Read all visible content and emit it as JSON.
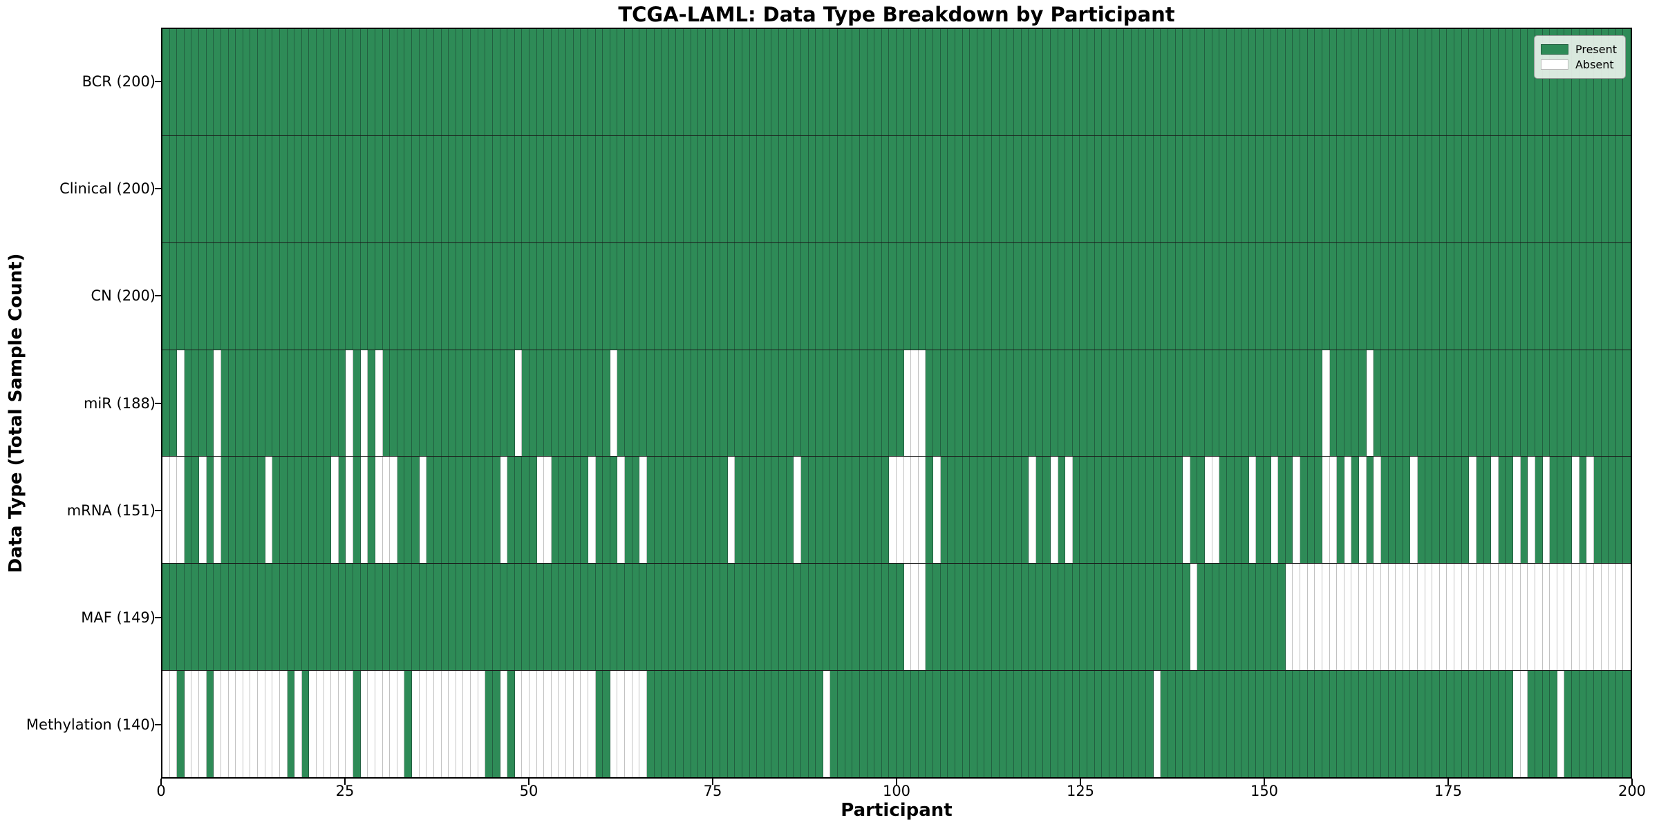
{
  "title": "TCGA-LAML: Data Type Breakdown by Participant",
  "xlabel": "Participant",
  "ylabel": "Data Type (Total Sample Count)",
  "legend": {
    "present_label": "Present",
    "absent_label": "Absent"
  },
  "colors": {
    "present": "#2e8b57",
    "absent": "#ffffff",
    "grid_on_present": "#225f40",
    "grid_on_absent": "#c2c2c2"
  },
  "chart_data": {
    "type": "heatmap",
    "n_participants": 200,
    "x_ticks": [
      0,
      25,
      50,
      75,
      100,
      125,
      150,
      175,
      200
    ],
    "legend_position": "upper right",
    "rows": [
      {
        "label": "BCR (200)",
        "name": "BCR",
        "present_count": 200,
        "absent_participants": []
      },
      {
        "label": "Clinical (200)",
        "name": "Clinical",
        "present_count": 200,
        "absent_participants": []
      },
      {
        "label": "CN (200)",
        "name": "CN",
        "present_count": 200,
        "absent_participants": []
      },
      {
        "label": "miR (188)",
        "name": "miR",
        "present_count": 188,
        "absent_participants": [
          2,
          7,
          25,
          27,
          29,
          48,
          61,
          101,
          102,
          103,
          158,
          164
        ]
      },
      {
        "label": "mRNA (151)",
        "name": "mRNA",
        "present_count": 151,
        "absent_participants": [
          0,
          1,
          2,
          5,
          7,
          14,
          23,
          25,
          27,
          29,
          30,
          31,
          35,
          46,
          51,
          52,
          58,
          62,
          65,
          77,
          86,
          99,
          100,
          101,
          102,
          103,
          105,
          118,
          121,
          123,
          139,
          142,
          143,
          148,
          151,
          154,
          158,
          159,
          161,
          163,
          165,
          170,
          178,
          181,
          184,
          186,
          188,
          192,
          194
        ]
      },
      {
        "label": "MAF (149)",
        "name": "MAF",
        "present_count": 149,
        "absent_participants": [
          101,
          102,
          103,
          140,
          153,
          154,
          155,
          156,
          157,
          158,
          159,
          160,
          161,
          162,
          163,
          164,
          165,
          166,
          167,
          168,
          169,
          170,
          171,
          172,
          173,
          174,
          175,
          176,
          177,
          178,
          179,
          180,
          181,
          182,
          183,
          184,
          185,
          186,
          187,
          188,
          189,
          190,
          191,
          192,
          193,
          194,
          195,
          196,
          197,
          198,
          199
        ]
      },
      {
        "label": "Methylation (140)",
        "name": "Methylation",
        "present_count": 140,
        "absent_participants": [
          0,
          1,
          3,
          4,
          5,
          7,
          8,
          9,
          10,
          11,
          12,
          13,
          14,
          15,
          16,
          18,
          20,
          21,
          22,
          23,
          24,
          25,
          27,
          28,
          29,
          30,
          31,
          32,
          34,
          35,
          36,
          37,
          38,
          39,
          40,
          41,
          42,
          43,
          46,
          48,
          49,
          50,
          51,
          52,
          53,
          54,
          55,
          56,
          57,
          58,
          61,
          62,
          63,
          64,
          65,
          90,
          135,
          184,
          185,
          190
        ]
      }
    ]
  }
}
